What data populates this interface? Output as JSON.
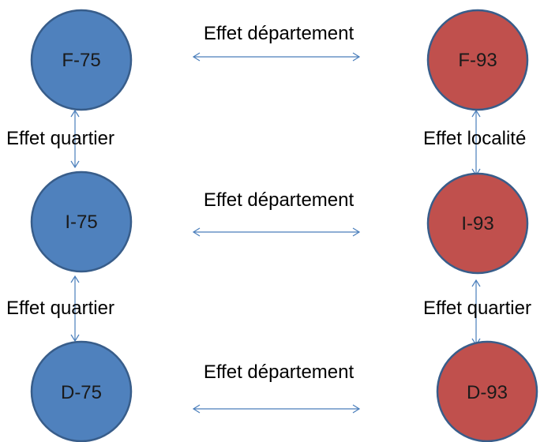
{
  "colors": {
    "blue_fill": "#4f81bd",
    "blue_stroke": "#385d8a",
    "red_fill": "#c0504d",
    "red_stroke": "#385d8a",
    "arrow": "#4a7ebb"
  },
  "nodes": {
    "f75": "F-75",
    "i75": "I-75",
    "d75": "D-75",
    "f93": "F-93",
    "i93": "I-93",
    "d93": "D-93"
  },
  "edges": {
    "dept_top": "Effet département",
    "dept_mid": "Effet département",
    "dept_bot": "Effet département",
    "quartier_left_top": "Effet quartier",
    "quartier_left_bot": "Effet quartier",
    "localite_right_top": "Effet localité",
    "quartier_right_bot": "Effet quartier"
  }
}
